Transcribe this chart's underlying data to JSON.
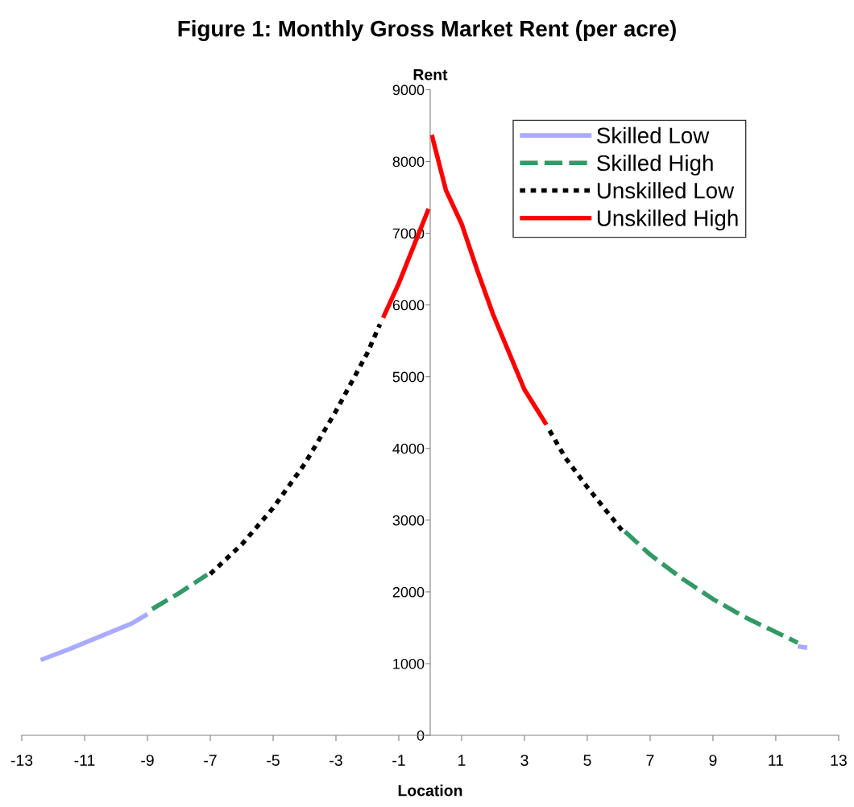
{
  "chart_data": {
    "type": "line",
    "title": "Figure 1: Monthly Gross Market Rent (per acre)",
    "xlabel": "Location",
    "ylabel": "Rent",
    "xlim": [
      -13,
      13
    ],
    "xticks": [
      -13,
      -11,
      -9,
      -7,
      -5,
      -3,
      -1,
      1,
      3,
      5,
      7,
      9,
      11,
      13
    ],
    "ylim": [
      0,
      9000
    ],
    "yticks": [
      0,
      1000,
      2000,
      3000,
      4000,
      5000,
      6000,
      7000,
      8000,
      9000
    ],
    "grid": false,
    "legend": "top right",
    "series": [
      {
        "name": "Skilled Low",
        "color": "#aaaaff",
        "line_style": "solid",
        "x": [
          -12.4,
          -11.5,
          -10.5,
          -9.5,
          -9.0,
          null,
          11.7,
          12.0
        ],
        "values": [
          1050,
          1200,
          1380,
          1560,
          1690,
          null,
          1240,
          1220
        ]
      },
      {
        "name": "Skilled High",
        "color": "#339966",
        "line_style": "dashed",
        "x": [
          -8.85,
          -8,
          -7.1,
          null,
          6.2,
          7,
          8,
          9,
          10,
          11,
          11.7
        ],
        "values": [
          1760,
          1980,
          2240,
          null,
          2840,
          2520,
          2190,
          1900,
          1650,
          1440,
          1290
        ]
      },
      {
        "name": "Unskilled Low",
        "color": "#000000",
        "line_style": "dotted",
        "x": [
          -7.0,
          -6,
          -5,
          -4,
          -3,
          -2,
          -1.6,
          null,
          3.8,
          4.3,
          5,
          6.1
        ],
        "values": [
          2250,
          2660,
          3170,
          3780,
          4520,
          5330,
          5730,
          null,
          4250,
          3870,
          3460,
          2860
        ]
      },
      {
        "name": "Unskilled High",
        "color": "#ff0000",
        "line_style": "solid",
        "x": [
          -1.5,
          -1,
          -0.05,
          null,
          0.05,
          0.5,
          1,
          1.5,
          2,
          3,
          3.7
        ],
        "values": [
          5820,
          6300,
          7340,
          null,
          8370,
          7600,
          7130,
          6480,
          5870,
          4820,
          4330
        ]
      }
    ]
  }
}
